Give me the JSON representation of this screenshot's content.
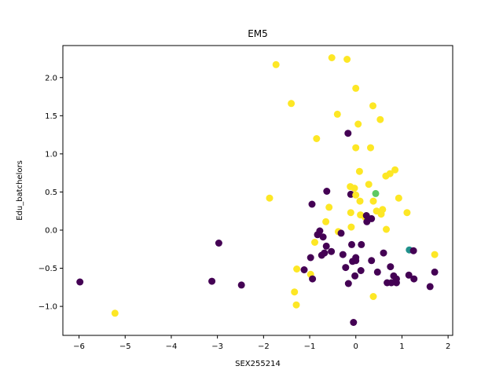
{
  "chart_data": {
    "type": "scatter",
    "title": "EM5",
    "xlabel": "SEX255214",
    "ylabel": "Edu_batchelors",
    "xlim": [
      -6.35,
      2.1
    ],
    "ylim": [
      -1.38,
      2.42
    ],
    "xticks": [
      -6,
      -5,
      -4,
      -3,
      -2,
      -1,
      0,
      1,
      2
    ],
    "yticks": [
      -1.0,
      -0.5,
      0.0,
      0.5,
      1.0,
      1.5,
      2.0
    ],
    "xtick_labels": [
      "−6",
      "−5",
      "−4",
      "−3",
      "−2",
      "−1",
      "0",
      "1",
      "2"
    ],
    "ytick_labels": [
      "−1.0",
      "−0.5",
      "0.0",
      "0.5",
      "1.0",
      "1.5",
      "2.0"
    ],
    "grid": false,
    "colors": {
      "purple": "#440154",
      "yellow": "#fde725",
      "teal": "#21918c",
      "green": "#5ec962"
    },
    "points": [
      {
        "x": -5.98,
        "y": -0.68,
        "c": "purple"
      },
      {
        "x": -5.22,
        "y": -1.09,
        "c": "yellow"
      },
      {
        "x": -3.12,
        "y": -0.67,
        "c": "purple"
      },
      {
        "x": -2.97,
        "y": -0.17,
        "c": "purple"
      },
      {
        "x": -2.48,
        "y": -0.72,
        "c": "purple"
      },
      {
        "x": -1.87,
        "y": 0.42,
        "c": "yellow"
      },
      {
        "x": -1.73,
        "y": 2.17,
        "c": "yellow"
      },
      {
        "x": -1.4,
        "y": 1.66,
        "c": "yellow"
      },
      {
        "x": -1.33,
        "y": -0.81,
        "c": "yellow"
      },
      {
        "x": -1.29,
        "y": -0.98,
        "c": "yellow"
      },
      {
        "x": -1.28,
        "y": -0.51,
        "c": "yellow"
      },
      {
        "x": -1.12,
        "y": -0.52,
        "c": "purple"
      },
      {
        "x": -0.98,
        "y": -0.58,
        "c": "yellow"
      },
      {
        "x": -0.98,
        "y": -0.36,
        "c": "purple"
      },
      {
        "x": -0.95,
        "y": 0.34,
        "c": "purple"
      },
      {
        "x": -0.94,
        "y": -0.64,
        "c": "purple"
      },
      {
        "x": -0.89,
        "y": -0.16,
        "c": "yellow"
      },
      {
        "x": -0.85,
        "y": 1.2,
        "c": "yellow"
      },
      {
        "x": -0.83,
        "y": -0.06,
        "c": "purple"
      },
      {
        "x": -0.78,
        "y": -0.01,
        "c": "purple"
      },
      {
        "x": -0.74,
        "y": -0.33,
        "c": "purple"
      },
      {
        "x": -0.71,
        "y": -0.09,
        "c": "purple"
      },
      {
        "x": -0.68,
        "y": -0.3,
        "c": "purple"
      },
      {
        "x": -0.65,
        "y": 0.11,
        "c": "yellow"
      },
      {
        "x": -0.64,
        "y": -0.21,
        "c": "purple"
      },
      {
        "x": -0.63,
        "y": 0.51,
        "c": "purple"
      },
      {
        "x": -0.58,
        "y": 0.3,
        "c": "yellow"
      },
      {
        "x": -0.53,
        "y": -0.28,
        "c": "purple"
      },
      {
        "x": -0.52,
        "y": 2.26,
        "c": "yellow"
      },
      {
        "x": -0.4,
        "y": 1.52,
        "c": "yellow"
      },
      {
        "x": -0.38,
        "y": -0.02,
        "c": "yellow"
      },
      {
        "x": -0.32,
        "y": -0.04,
        "c": "purple"
      },
      {
        "x": -0.28,
        "y": -0.32,
        "c": "purple"
      },
      {
        "x": -0.22,
        "y": -0.49,
        "c": "purple"
      },
      {
        "x": -0.19,
        "y": 2.24,
        "c": "yellow"
      },
      {
        "x": -0.17,
        "y": 1.27,
        "c": "purple"
      },
      {
        "x": -0.16,
        "y": -0.7,
        "c": "purple"
      },
      {
        "x": -0.12,
        "y": 0.57,
        "c": "yellow"
      },
      {
        "x": -0.11,
        "y": 0.47,
        "c": "purple"
      },
      {
        "x": -0.11,
        "y": 0.23,
        "c": "yellow"
      },
      {
        "x": -0.1,
        "y": 0.04,
        "c": "yellow"
      },
      {
        "x": -0.09,
        "y": -0.19,
        "c": "purple"
      },
      {
        "x": -0.07,
        "y": -0.41,
        "c": "purple"
      },
      {
        "x": -0.05,
        "y": -1.21,
        "c": "purple"
      },
      {
        "x": -0.03,
        "y": 0.55,
        "c": "yellow"
      },
      {
        "x": -0.02,
        "y": -0.6,
        "c": "purple"
      },
      {
        "x": 0.0,
        "y": 1.86,
        "c": "yellow"
      },
      {
        "x": 0.0,
        "y": 1.08,
        "c": "yellow"
      },
      {
        "x": 0.0,
        "y": 0.46,
        "c": "yellow"
      },
      {
        "x": 0.0,
        "y": -0.36,
        "c": "purple"
      },
      {
        "x": 0.0,
        "y": -0.4,
        "c": "purple"
      },
      {
        "x": 0.05,
        "y": 1.39,
        "c": "yellow"
      },
      {
        "x": 0.08,
        "y": 0.77,
        "c": "yellow"
      },
      {
        "x": 0.09,
        "y": 0.38,
        "c": "yellow"
      },
      {
        "x": 0.1,
        "y": 0.2,
        "c": "yellow"
      },
      {
        "x": 0.11,
        "y": -0.53,
        "c": "purple"
      },
      {
        "x": 0.12,
        "y": -0.19,
        "c": "purple"
      },
      {
        "x": 0.2,
        "y": 0.17,
        "c": "yellow"
      },
      {
        "x": 0.23,
        "y": 0.19,
        "c": "purple"
      },
      {
        "x": 0.24,
        "y": 0.11,
        "c": "purple"
      },
      {
        "x": 0.28,
        "y": 0.6,
        "c": "yellow"
      },
      {
        "x": 0.32,
        "y": 1.08,
        "c": "yellow"
      },
      {
        "x": 0.34,
        "y": 0.15,
        "c": "purple"
      },
      {
        "x": 0.34,
        "y": -0.4,
        "c": "purple"
      },
      {
        "x": 0.37,
        "y": 1.63,
        "c": "yellow"
      },
      {
        "x": 0.38,
        "y": 0.38,
        "c": "yellow"
      },
      {
        "x": 0.38,
        "y": -0.87,
        "c": "yellow"
      },
      {
        "x": 0.43,
        "y": 0.48,
        "c": "green"
      },
      {
        "x": 0.45,
        "y": 0.25,
        "c": "yellow"
      },
      {
        "x": 0.47,
        "y": -0.55,
        "c": "purple"
      },
      {
        "x": 0.53,
        "y": 1.45,
        "c": "yellow"
      },
      {
        "x": 0.55,
        "y": 0.21,
        "c": "yellow"
      },
      {
        "x": 0.58,
        "y": 0.27,
        "c": "yellow"
      },
      {
        "x": 0.6,
        "y": -0.3,
        "c": "purple"
      },
      {
        "x": 0.65,
        "y": 0.71,
        "c": "yellow"
      },
      {
        "x": 0.66,
        "y": 0.01,
        "c": "yellow"
      },
      {
        "x": 0.68,
        "y": -0.69,
        "c": "purple"
      },
      {
        "x": 0.74,
        "y": 0.74,
        "c": "yellow"
      },
      {
        "x": 0.75,
        "y": -0.48,
        "c": "purple"
      },
      {
        "x": 0.77,
        "y": -0.69,
        "c": "purple"
      },
      {
        "x": 0.82,
        "y": -0.6,
        "c": "purple"
      },
      {
        "x": 0.85,
        "y": 0.79,
        "c": "yellow"
      },
      {
        "x": 0.88,
        "y": -0.69,
        "c": "purple"
      },
      {
        "x": 0.88,
        "y": -0.64,
        "c": "purple"
      },
      {
        "x": 0.93,
        "y": 0.42,
        "c": "yellow"
      },
      {
        "x": 1.11,
        "y": 0.23,
        "c": "yellow"
      },
      {
        "x": 1.15,
        "y": -0.59,
        "c": "purple"
      },
      {
        "x": 1.16,
        "y": -0.26,
        "c": "teal"
      },
      {
        "x": 1.25,
        "y": -0.27,
        "c": "purple"
      },
      {
        "x": 1.26,
        "y": -0.64,
        "c": "purple"
      },
      {
        "x": 1.61,
        "y": -0.74,
        "c": "purple"
      },
      {
        "x": 1.71,
        "y": -0.32,
        "c": "yellow"
      },
      {
        "x": 1.71,
        "y": -0.55,
        "c": "purple"
      }
    ]
  }
}
